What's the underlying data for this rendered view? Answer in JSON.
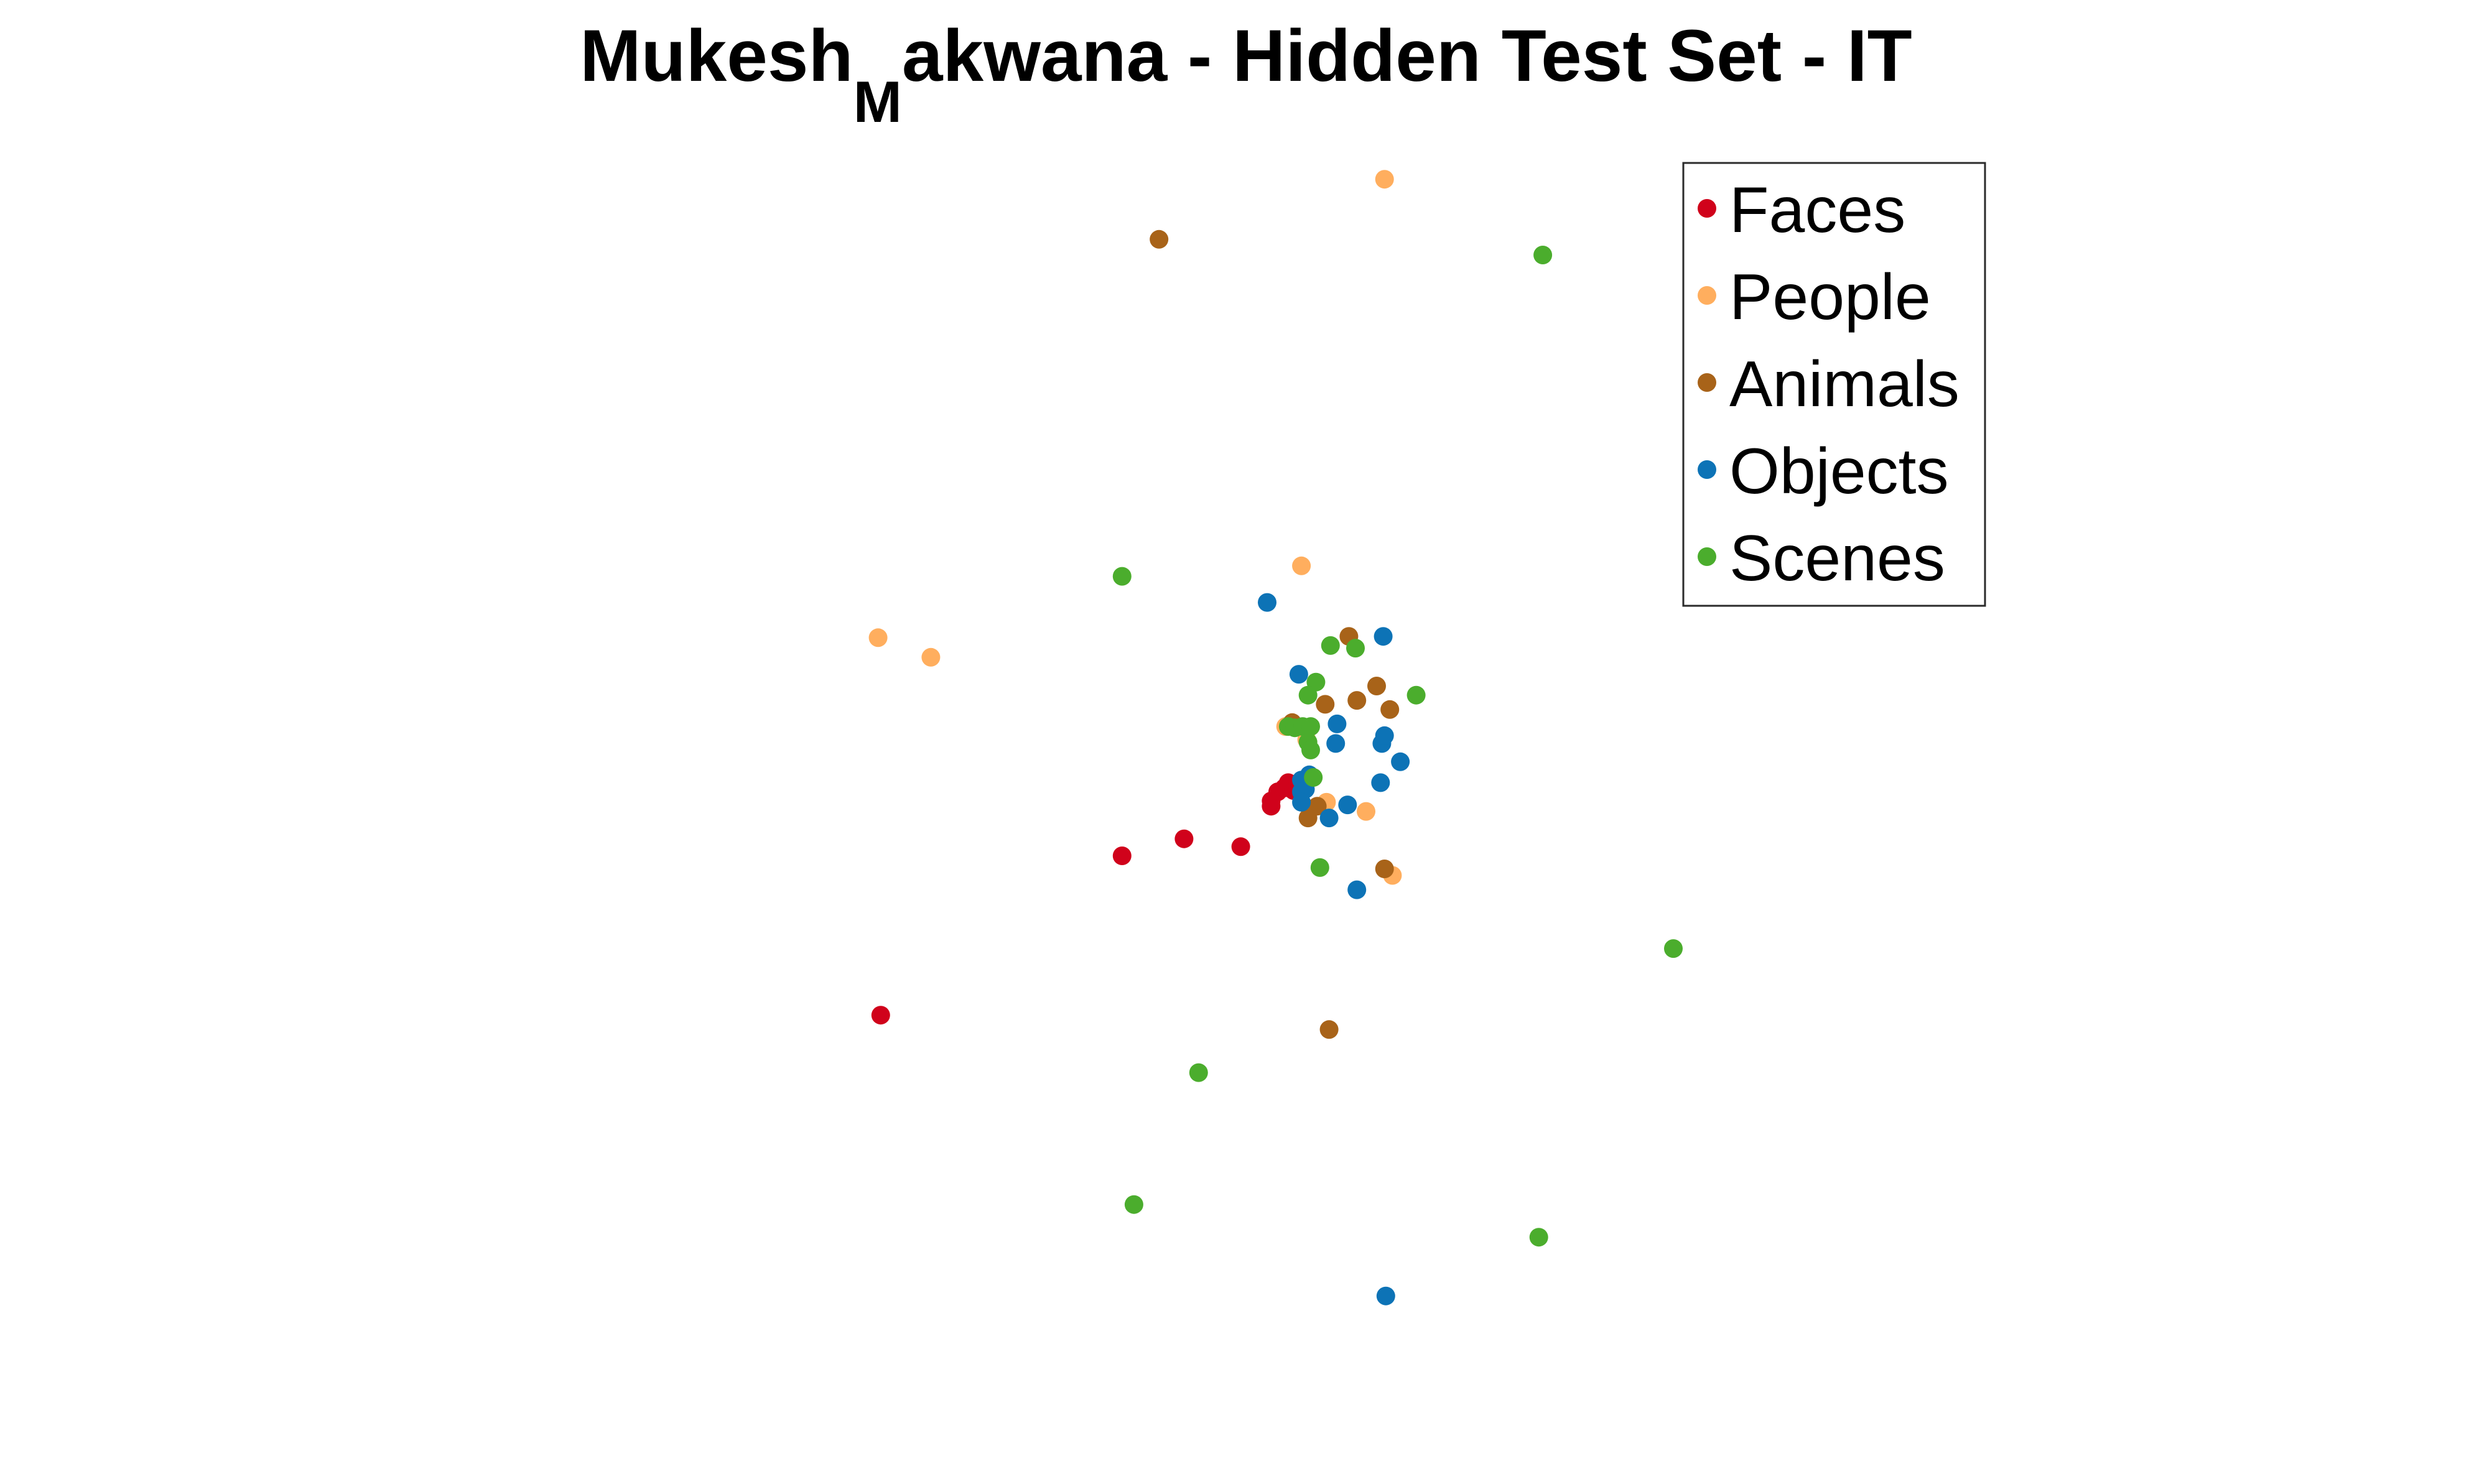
{
  "chart_data": {
    "type": "scatter",
    "title": {
      "before": "Mukesh",
      "subscript": "M",
      "after": "akwana - Hidden Test Set - IT"
    },
    "axes_visible": false,
    "grid": false,
    "xlim": [
      0,
      100
    ],
    "ylim": [
      0,
      100
    ],
    "legend": {
      "placement": "top-right",
      "box": true
    },
    "series": [
      {
        "name": "Faces",
        "color": "#d0021b",
        "points": [
          [
            18.2,
            31.8
          ],
          [
            36.5,
            44.0
          ],
          [
            41.2,
            45.3
          ],
          [
            45.5,
            44.7
          ],
          [
            47.8,
            47.8
          ],
          [
            47.8,
            48.2
          ],
          [
            48.3,
            48.9
          ],
          [
            48.8,
            49.2
          ],
          [
            49.1,
            49.6
          ],
          [
            49.5,
            49.0
          ],
          [
            49.8,
            49.4
          ]
        ]
      },
      {
        "name": "People",
        "color": "#ffae5e",
        "points": [
          [
            56.4,
            95.8
          ],
          [
            50.1,
            66.2
          ],
          [
            18.0,
            60.7
          ],
          [
            22.0,
            59.2
          ],
          [
            48.9,
            53.9
          ],
          [
            50.5,
            52.9
          ],
          [
            52.0,
            48.1
          ],
          [
            55.0,
            47.4
          ],
          [
            57.0,
            42.5
          ]
        ]
      },
      {
        "name": "Animals",
        "color": "#a86319",
        "points": [
          [
            39.3,
            91.2
          ],
          [
            53.7,
            60.8
          ],
          [
            51.9,
            55.6
          ],
          [
            54.3,
            55.9
          ],
          [
            55.8,
            57.0
          ],
          [
            56.8,
            55.2
          ],
          [
            49.4,
            54.2
          ],
          [
            51.3,
            47.8
          ],
          [
            50.6,
            46.9
          ],
          [
            56.4,
            43.0
          ],
          [
            52.2,
            30.7
          ]
        ]
      },
      {
        "name": "Objects",
        "color": "#0d73b6",
        "points": [
          [
            47.5,
            63.4
          ],
          [
            56.3,
            60.8
          ],
          [
            49.9,
            57.9
          ],
          [
            52.8,
            54.1
          ],
          [
            52.7,
            52.6
          ],
          [
            56.2,
            52.6
          ],
          [
            56.4,
            53.2
          ],
          [
            57.6,
            51.2
          ],
          [
            56.1,
            49.6
          ],
          [
            53.6,
            47.9
          ],
          [
            52.2,
            46.9
          ],
          [
            54.3,
            41.4
          ],
          [
            50.7,
            50.2
          ],
          [
            50.1,
            49.8
          ],
          [
            50.4,
            49.1
          ],
          [
            50.1,
            48.9
          ],
          [
            50.1,
            48.1
          ],
          [
            56.5,
            10.3
          ]
        ]
      },
      {
        "name": "Scenes",
        "color": "#4bad2d",
        "points": [
          [
            68.4,
            90.0
          ],
          [
            36.5,
            65.4
          ],
          [
            52.3,
            60.1
          ],
          [
            51.2,
            57.3
          ],
          [
            54.2,
            59.9
          ],
          [
            58.8,
            56.3
          ],
          [
            50.6,
            56.3
          ],
          [
            49.1,
            53.9
          ],
          [
            49.6,
            53.8
          ],
          [
            50.2,
            53.9
          ],
          [
            50.8,
            53.9
          ],
          [
            50.6,
            52.7
          ],
          [
            50.8,
            52.1
          ],
          [
            51.0,
            50.0
          ],
          [
            51.5,
            43.1
          ],
          [
            78.3,
            36.9
          ],
          [
            42.3,
            27.4
          ],
          [
            37.4,
            17.3
          ],
          [
            68.1,
            14.8
          ]
        ]
      }
    ]
  }
}
